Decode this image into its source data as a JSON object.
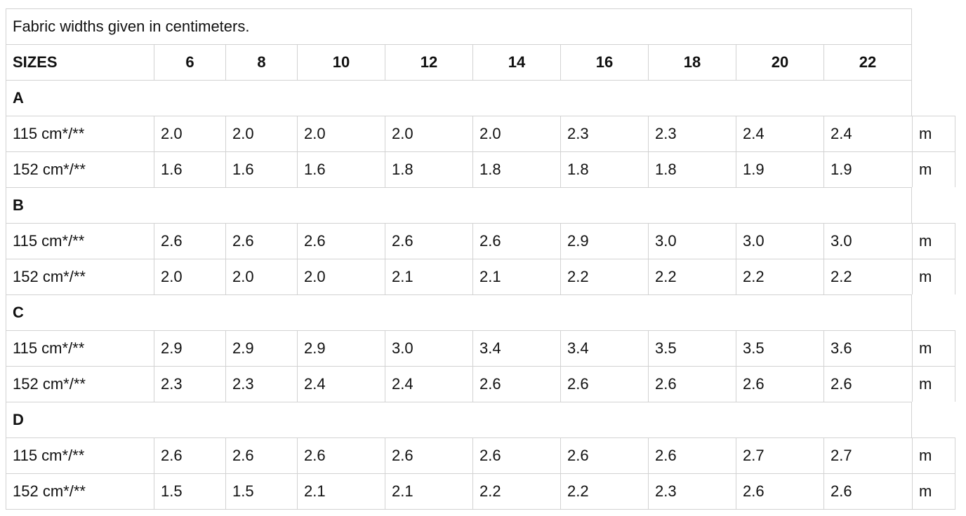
{
  "caption": "Fabric widths given in centimeters.",
  "header": {
    "label": "SIZES",
    "sizes": [
      "6",
      "8",
      "10",
      "12",
      "14",
      "16",
      "18",
      "20",
      "22"
    ]
  },
  "groups": [
    {
      "name": "A",
      "rows": [
        {
          "width": "115 cm*/**",
          "values": [
            "2.0",
            "2.0",
            "2.0",
            "2.0",
            "2.0",
            "2.3",
            "2.3",
            "2.4",
            "2.4"
          ],
          "unit": "m"
        },
        {
          "width": "152 cm*/**",
          "values": [
            "1.6",
            "1.6",
            "1.6",
            "1.8",
            "1.8",
            "1.8",
            "1.8",
            "1.9",
            "1.9"
          ],
          "unit": "m"
        }
      ]
    },
    {
      "name": "B",
      "rows": [
        {
          "width": "115 cm*/**",
          "values": [
            "2.6",
            "2.6",
            "2.6",
            "2.6",
            "2.6",
            "2.9",
            "3.0",
            "3.0",
            "3.0"
          ],
          "unit": "m"
        },
        {
          "width": "152 cm*/**",
          "values": [
            "2.0",
            "2.0",
            "2.0",
            "2.1",
            "2.1",
            "2.2",
            "2.2",
            "2.2",
            "2.2"
          ],
          "unit": "m"
        }
      ]
    },
    {
      "name": "C",
      "rows": [
        {
          "width": "115 cm*/**",
          "values": [
            "2.9",
            "2.9",
            "2.9",
            "3.0",
            "3.4",
            "3.4",
            "3.5",
            "3.5",
            "3.6"
          ],
          "unit": "m"
        },
        {
          "width": "152 cm*/**",
          "values": [
            "2.3",
            "2.3",
            "2.4",
            "2.4",
            "2.6",
            "2.6",
            "2.6",
            "2.6",
            "2.6"
          ],
          "unit": "m"
        }
      ]
    },
    {
      "name": "D",
      "rows": [
        {
          "width": "115 cm*/**",
          "values": [
            "2.6",
            "2.6",
            "2.6",
            "2.6",
            "2.6",
            "2.6",
            "2.6",
            "2.7",
            "2.7"
          ],
          "unit": "m"
        },
        {
          "width": "152 cm*/**",
          "values": [
            "1.5",
            "1.5",
            "2.1",
            "2.1",
            "2.2",
            "2.2",
            "2.3",
            "2.6",
            "2.6"
          ],
          "unit": "m"
        }
      ]
    }
  ]
}
